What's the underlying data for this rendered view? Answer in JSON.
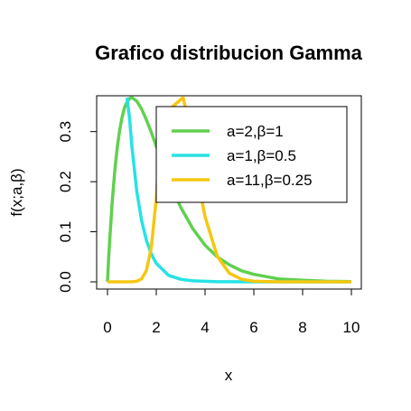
{
  "chart_data": {
    "type": "line",
    "title": "Grafico distribucion Gamma",
    "xlabel": "x",
    "ylabel": "f(x;a,β)",
    "xlim": [
      0,
      10
    ],
    "ylim": [
      0,
      0.368
    ],
    "x_ticks": [
      "0",
      "2",
      "4",
      "6",
      "8",
      "10"
    ],
    "y_ticks": [
      "0.0",
      "0.1",
      "0.2",
      "0.3"
    ],
    "grid": false,
    "legend_position": "top-right",
    "series": [
      {
        "name": "a=2,β=1",
        "color": "#61D04F",
        "x": [
          0,
          0.05,
          0.1,
          0.2,
          0.3,
          0.4,
          0.5,
          0.6,
          0.7,
          0.8,
          0.9,
          1.0,
          1.2,
          1.4,
          1.6,
          1.8,
          2.0,
          2.5,
          3.0,
          3.5,
          4.0,
          4.5,
          5.0,
          5.5,
          6.0,
          7.0,
          8.0,
          9.0,
          10.0
        ],
        "y": [
          0,
          0.048,
          0.09,
          0.164,
          0.222,
          0.268,
          0.303,
          0.329,
          0.348,
          0.359,
          0.366,
          0.368,
          0.361,
          0.345,
          0.323,
          0.298,
          0.271,
          0.205,
          0.149,
          0.106,
          0.073,
          0.05,
          0.034,
          0.022,
          0.015,
          0.006,
          0.003,
          0.001,
          0.0005
        ]
      },
      {
        "name": "a=1,β=0.5",
        "color": "#28E2E5",
        "x": [
          0.8,
          0.9,
          1.0,
          1.2,
          1.4,
          1.6,
          1.8,
          2.0,
          2.5,
          3.0,
          3.5,
          4.0,
          4.5,
          5.0,
          6.0,
          7.0,
          8.0,
          9.0,
          10.0
        ],
        "y": [
          0.368,
          0.329,
          0.271,
          0.181,
          0.122,
          0.082,
          0.055,
          0.037,
          0.013,
          0.005,
          0.002,
          0.001,
          0.0002,
          0.0001,
          0,
          0,
          0,
          0,
          0
        ]
      },
      {
        "name": "a=11,β=0.25",
        "color": "#F5C710",
        "x": [
          0,
          0.5,
          1.0,
          1.2,
          1.4,
          1.6,
          1.8,
          2.0,
          2.2,
          3.1,
          3.2,
          3.4,
          3.6,
          3.8,
          4.0,
          4.5,
          5.0,
          5.5,
          6.0,
          7.0,
          8.0,
          9.0,
          10.0
        ],
        "y": [
          0,
          0,
          0.0001,
          0.001,
          0.006,
          0.023,
          0.07,
          0.166,
          0.33,
          0.368,
          0.347,
          0.297,
          0.237,
          0.18,
          0.13,
          0.051,
          0.017,
          0.005,
          0.001,
          0,
          0,
          0,
          0
        ]
      }
    ]
  }
}
